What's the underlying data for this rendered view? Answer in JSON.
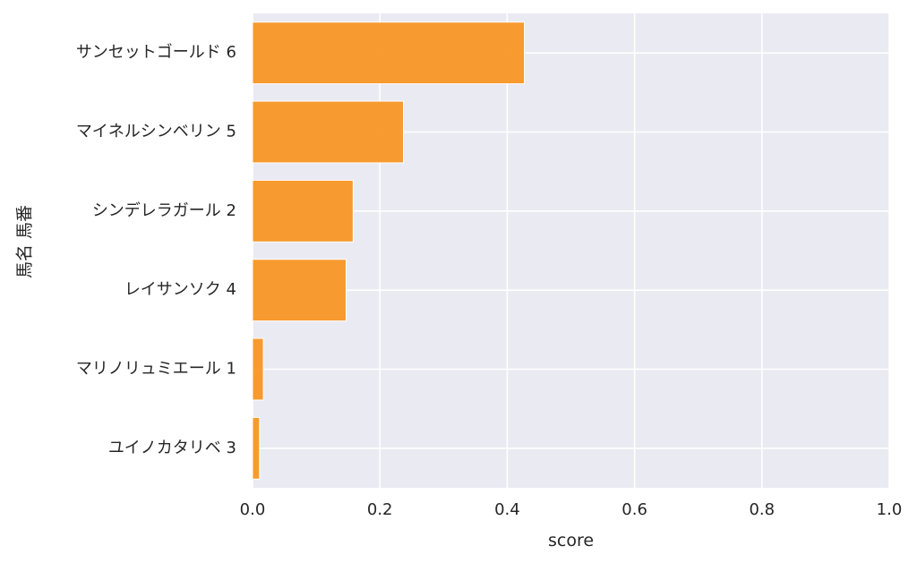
{
  "chart_data": {
    "type": "bar",
    "orientation": "horizontal",
    "categories": [
      "サンセットゴールド 6",
      "マイネルシンベリン 5",
      "シンデレラガール 2",
      "レイサンソク 4",
      "マリノリュミエール 1",
      "ユイノカタリベ 3"
    ],
    "values": [
      0.427,
      0.237,
      0.158,
      0.147,
      0.017,
      0.011
    ],
    "xlabel": "score",
    "ylabel": "馬名 馬番",
    "xlim": [
      0.0,
      1.0
    ],
    "xticks": [
      "0.0",
      "0.2",
      "0.4",
      "0.6",
      "0.8",
      "1.0"
    ],
    "grid": true,
    "colors": {
      "bar": "#f7931e",
      "plot_background": "#eaeaf2",
      "grid": "#ffffff"
    }
  }
}
